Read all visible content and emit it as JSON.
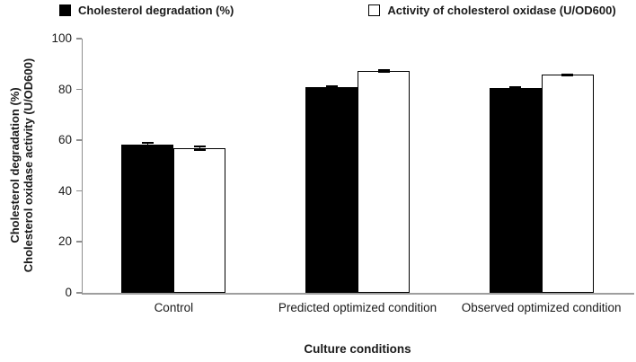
{
  "chart_data": {
    "type": "bar",
    "title": "",
    "categories": [
      "Control",
      "Predicted optimized condition",
      "Observed optimized condition"
    ],
    "series": [
      {
        "name": "Cholesterol degradation (%)",
        "fill": "#000000",
        "style": "filled",
        "values": [
          58.2,
          80.9,
          80.4
        ],
        "errors": [
          1.0,
          0.7,
          0.7
        ]
      },
      {
        "name": "Activity of cholesterol oxidase (U/OD600)",
        "fill": "#ffffff",
        "style": "open",
        "values": [
          56.9,
          87.2,
          85.8
        ],
        "errors": [
          1.0,
          0.7,
          0.5
        ]
      }
    ],
    "xlabel": "Culture conditions",
    "ylabel_line1": "Cholesterol degradation (%)",
    "ylabel_line2": "Cholesterol oxidase activity (U/OD600)",
    "ylim": [
      0,
      100
    ],
    "yticks": [
      0,
      20,
      40,
      60,
      80,
      100
    ],
    "legend_position": "top",
    "grid": false,
    "error_bars": true
  },
  "colors": {
    "bar_fill": "#000000",
    "bar_open_fill": "#ffffff",
    "bar_border": "#000000",
    "axis_line": "#8f8f8f",
    "text": "#1a1a1a"
  }
}
